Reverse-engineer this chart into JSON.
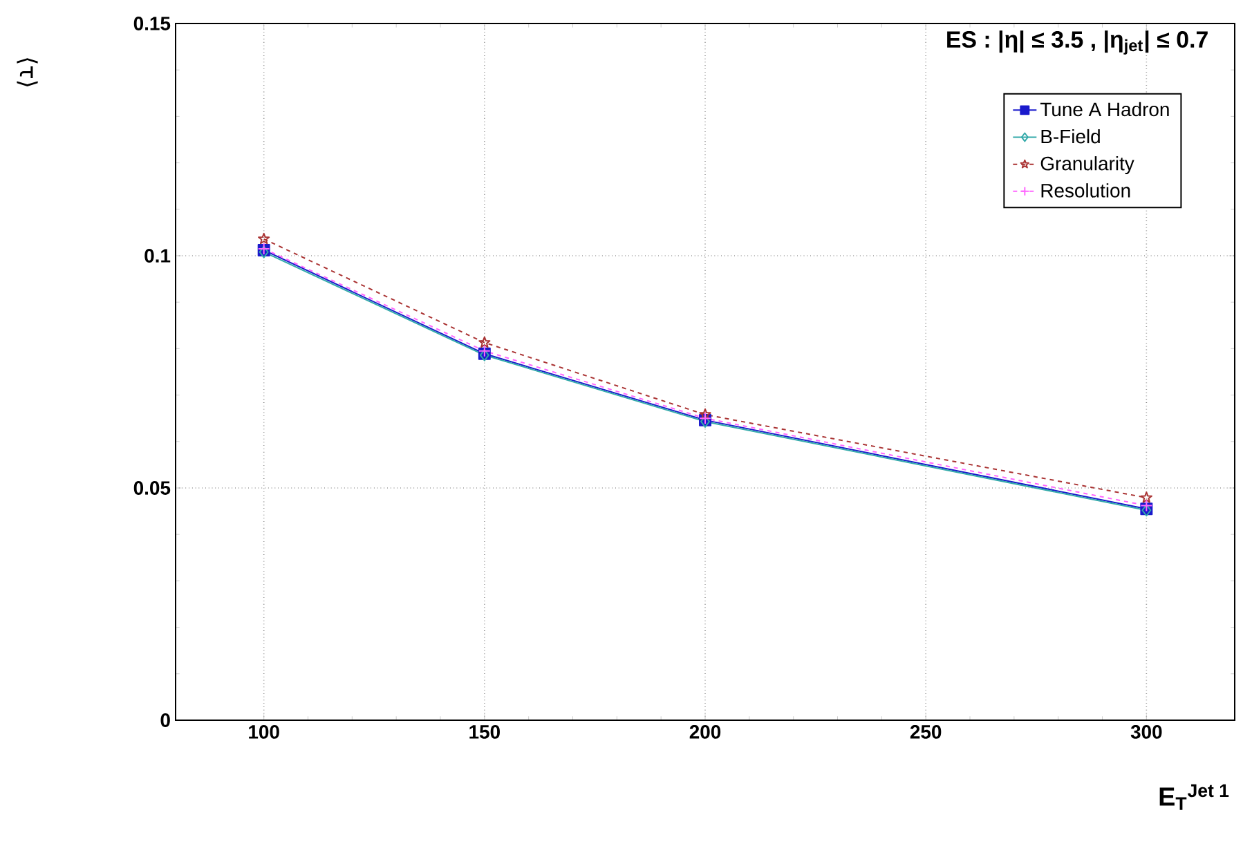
{
  "chart_data": {
    "type": "line",
    "title": "ES : |η| ≤ 3.5  ,  |η$_{jet}$| ≤ 0.7",
    "xlabel": "E$_{T}$$^{Jet 1}$",
    "ylabel": "⟨τ⟩",
    "x": [
      100,
      150,
      200,
      300
    ],
    "series": [
      {
        "name": "Tune A Hadron",
        "color": "#1a1acc",
        "marker": "square",
        "line_style": "solid",
        "values": [
          0.1012,
          0.0789,
          0.0646,
          0.0455
        ]
      },
      {
        "name": "B-Field",
        "color": "#33aaaa",
        "marker": "diamond",
        "line_style": "solid",
        "values": [
          0.1008,
          0.0786,
          0.0643,
          0.0452
        ]
      },
      {
        "name": "Granularity",
        "color": "#aa3333",
        "marker": "star",
        "line_style": "dashed",
        "values": [
          0.1036,
          0.0813,
          0.0658,
          0.0479
        ]
      },
      {
        "name": "Resolution",
        "color": "#ff66ff",
        "marker": "cross",
        "line_style": "dashed",
        "values": [
          0.1015,
          0.0795,
          0.065,
          0.0462
        ]
      }
    ],
    "xlim": [
      80,
      320
    ],
    "ylim": [
      0,
      0.15
    ],
    "xticks": [
      100,
      150,
      200,
      250,
      300
    ],
    "yticks": [
      0,
      0.05,
      0.1,
      0.15
    ],
    "grid": true,
    "legend": "top right"
  }
}
